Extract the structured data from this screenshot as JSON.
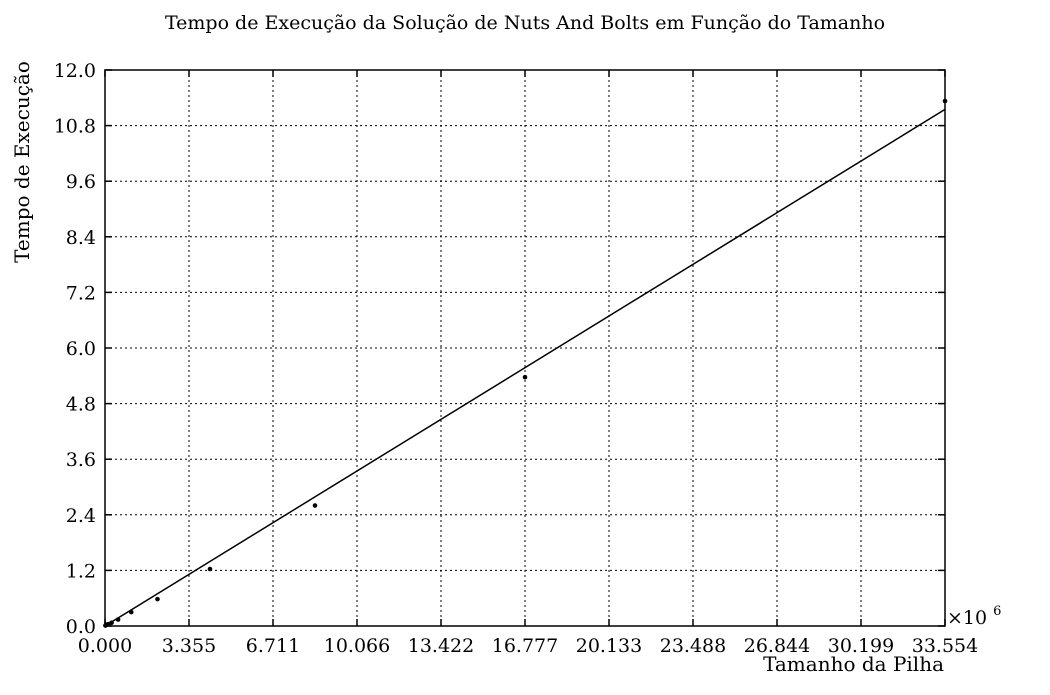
{
  "chart_data": {
    "type": "scatter",
    "title": "Tempo de Execução da Solução de Nuts And Bolts em Função do Tamanho",
    "xlabel": "Tamanho da Pilha",
    "ylabel": "Tempo de Execução",
    "x_multiplier_label": "×10",
    "x_multiplier_exponent": "6",
    "xlim": [
      0,
      33.554
    ],
    "ylim": [
      0,
      12
    ],
    "x_ticks": [
      "0.000",
      "3.355",
      "6.711",
      "10.066",
      "13.422",
      "16.777",
      "20.133",
      "23.488",
      "26.844",
      "30.199",
      "33.554"
    ],
    "y_ticks": [
      "0.0",
      "1.2",
      "2.4",
      "3.6",
      "4.8",
      "6.0",
      "7.2",
      "8.4",
      "9.6",
      "10.8",
      "12.0"
    ],
    "grid": true,
    "series": [
      {
        "type": "scatter",
        "points": [
          {
            "x": 0.016,
            "y": 0.01
          },
          {
            "x": 0.033,
            "y": 0.02
          },
          {
            "x": 0.066,
            "y": 0.03
          },
          {
            "x": 0.131,
            "y": 0.04
          },
          {
            "x": 0.262,
            "y": 0.07
          },
          {
            "x": 0.524,
            "y": 0.14
          },
          {
            "x": 1.049,
            "y": 0.3
          },
          {
            "x": 2.097,
            "y": 0.58
          },
          {
            "x": 4.194,
            "y": 1.23
          },
          {
            "x": 8.389,
            "y": 2.6
          },
          {
            "x": 16.777,
            "y": 5.37
          },
          {
            "x": 33.554,
            "y": 11.33
          }
        ]
      },
      {
        "type": "line",
        "points": [
          {
            "x": 0,
            "y": 0
          },
          {
            "x": 33.554,
            "y": 11.15
          }
        ]
      }
    ]
  }
}
